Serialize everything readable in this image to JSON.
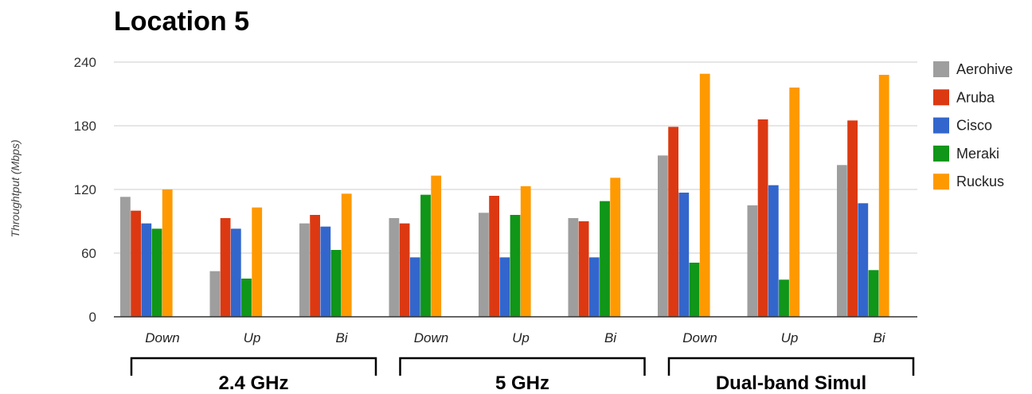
{
  "chart_data": {
    "type": "bar",
    "title": "Location 5",
    "ylabel": "Throughtput (Mbps)",
    "xlabel": "",
    "ylim": [
      0,
      240
    ],
    "yticks": [
      0,
      60,
      120,
      180,
      240
    ],
    "grid": true,
    "legend_position": "right",
    "categories": [
      "Down",
      "Up",
      "Bi",
      "Down",
      "Up",
      "Bi",
      "Down",
      "Up",
      "Bi"
    ],
    "category_groups": [
      {
        "label": "2.4 GHz",
        "categories": [
          0,
          1,
          2
        ]
      },
      {
        "label": "5 GHz",
        "categories": [
          3,
          4,
          5
        ]
      },
      {
        "label": "Dual-band Simul",
        "categories": [
          6,
          7,
          8
        ]
      }
    ],
    "series": [
      {
        "name": "Aerohive",
        "color": "#9e9e9e",
        "values": [
          113,
          43,
          88,
          93,
          98,
          93,
          152,
          105,
          143
        ]
      },
      {
        "name": "Aruba",
        "color": "#dc3912",
        "values": [
          100,
          93,
          96,
          88,
          114,
          90,
          179,
          186,
          185
        ]
      },
      {
        "name": "Cisco",
        "color": "#3366cc",
        "values": [
          88,
          83,
          85,
          56,
          56,
          56,
          117,
          124,
          107
        ]
      },
      {
        "name": "Meraki",
        "color": "#109618",
        "values": [
          83,
          36,
          63,
          115,
          96,
          109,
          51,
          35,
          44
        ]
      },
      {
        "name": "Ruckus",
        "color": "#ff9900",
        "values": [
          120,
          103,
          116,
          133,
          123,
          131,
          229,
          216,
          228
        ]
      }
    ]
  }
}
